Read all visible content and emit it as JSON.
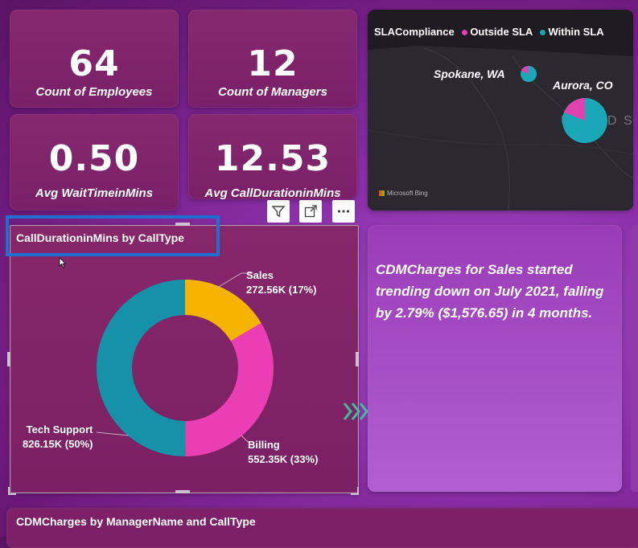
{
  "kpis": [
    {
      "value": "64",
      "label": "Count of Employees"
    },
    {
      "value": "12",
      "label": "Count of Managers"
    },
    {
      "value": "0.50",
      "label": "Avg WaitTimeinMins"
    },
    {
      "value": "12.53",
      "label": "Avg CallDurationinMins"
    }
  ],
  "map": {
    "legend_title": "SLACompliance",
    "legend_items": [
      {
        "label": "Outside SLA",
        "color": "#e040b0"
      },
      {
        "label": "Within SLA",
        "color": "#1aa8b8"
      }
    ],
    "cities": [
      "Spokane, WA",
      "Aurora, CO"
    ],
    "country_label": "UNITED STA",
    "attribution": "Microsoft Bing"
  },
  "donut": {
    "title": "CallDurationinMins by CallType",
    "toolbar": [
      "filter-icon",
      "focus-mode-icon",
      "more-options-icon"
    ]
  },
  "chart_data": {
    "type": "pie",
    "title": "CallDurationinMins by CallType",
    "categories": [
      "Sales",
      "Billing",
      "Tech Support"
    ],
    "values": [
      272.56,
      552.35,
      826.15
    ],
    "value_labels": [
      "272.56K (17%)",
      "552.35K (33%)",
      "826.15K (50%)"
    ],
    "percents": [
      17,
      33,
      50
    ],
    "colors": [
      "#f5b400",
      "#ec3eb4",
      "#1592a8"
    ]
  },
  "narrative": {
    "text": "CDMCharges for Sales started trending down on July 2021, falling by 2.79% ($1,576.65) in 4 months."
  },
  "bottom": {
    "title": "CDMCharges by ManagerName and CallType"
  }
}
